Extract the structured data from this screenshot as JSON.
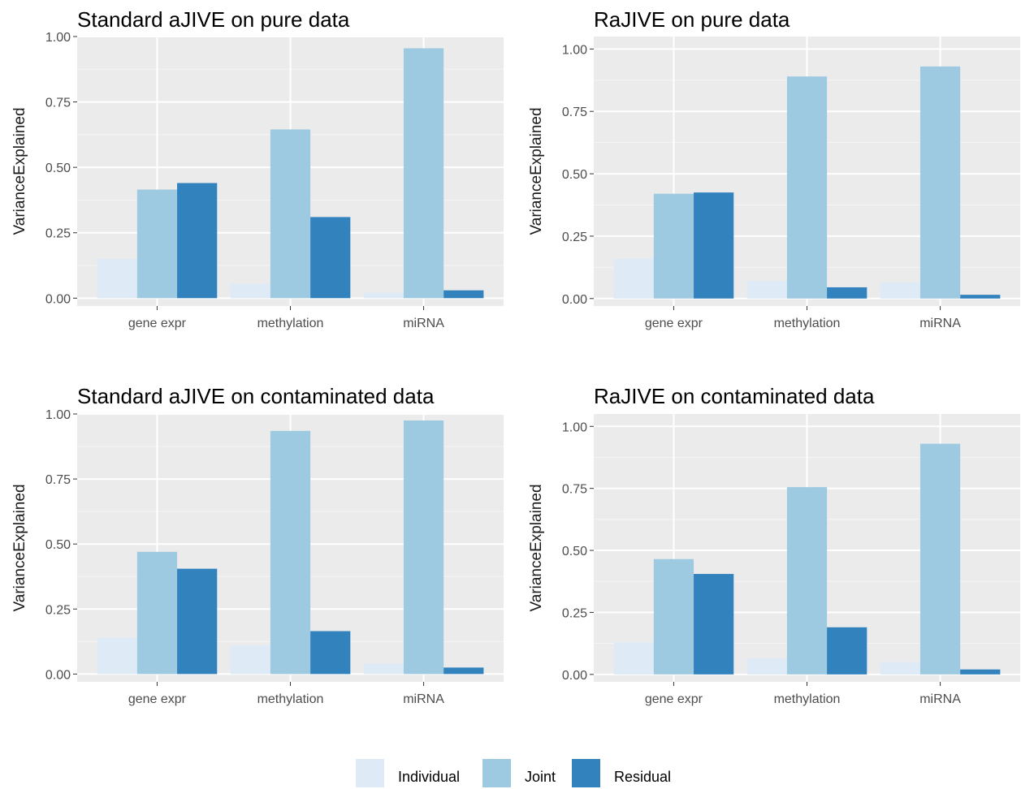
{
  "figure": {
    "legend": {
      "items": [
        {
          "label": "Individual",
          "color": "#deebf7"
        },
        {
          "label": "Joint",
          "color": "#9ecae1"
        },
        {
          "label": "Residual",
          "color": "#3182bd"
        }
      ]
    }
  },
  "chart_data": [
    {
      "type": "bar",
      "title": "Standard aJIVE on pure data",
      "xlabel": "",
      "ylabel": "VarianceExplained",
      "categories": [
        "gene expr",
        "methylation",
        "miRNA"
      ],
      "ylim": [
        -0.03,
        1.0
      ],
      "yticks": [
        "0.00",
        "0.25",
        "0.50",
        "0.75",
        "1.00"
      ],
      "series": [
        {
          "name": "Individual",
          "color": "#deebf7",
          "values": [
            0.15,
            0.055,
            0.02
          ]
        },
        {
          "name": "Joint",
          "color": "#9ecae1",
          "values": [
            0.415,
            0.645,
            0.955
          ]
        },
        {
          "name": "Residual",
          "color": "#3182bd",
          "values": [
            0.44,
            0.31,
            0.03
          ]
        }
      ]
    },
    {
      "type": "bar",
      "title": "RaJIVE on pure data",
      "xlabel": "",
      "ylabel": "VarianceExplained",
      "categories": [
        "gene expr",
        "methylation",
        "miRNA"
      ],
      "ylim": [
        -0.03,
        1.05
      ],
      "yticks": [
        "0.00",
        "0.25",
        "0.50",
        "0.75",
        "1.00"
      ],
      "series": [
        {
          "name": "Individual",
          "color": "#deebf7",
          "values": [
            0.16,
            0.07,
            0.065
          ]
        },
        {
          "name": "Joint",
          "color": "#9ecae1",
          "values": [
            0.42,
            0.89,
            0.93
          ]
        },
        {
          "name": "Residual",
          "color": "#3182bd",
          "values": [
            0.425,
            0.045,
            0.015
          ]
        }
      ]
    },
    {
      "type": "bar",
      "title": "Standard aJIVE on contaminated data",
      "xlabel": "",
      "ylabel": "VarianceExplained",
      "categories": [
        "gene expr",
        "methylation",
        "miRNA"
      ],
      "ylim": [
        -0.03,
        1.0
      ],
      "yticks": [
        "0.00",
        "0.25",
        "0.50",
        "0.75",
        "1.00"
      ],
      "series": [
        {
          "name": "Individual",
          "color": "#deebf7",
          "values": [
            0.14,
            0.11,
            0.04
          ]
        },
        {
          "name": "Joint",
          "color": "#9ecae1",
          "values": [
            0.47,
            0.935,
            0.975
          ]
        },
        {
          "name": "Residual",
          "color": "#3182bd",
          "values": [
            0.405,
            0.165,
            0.025
          ]
        }
      ]
    },
    {
      "type": "bar",
      "title": "RaJIVE on contaminated data",
      "xlabel": "",
      "ylabel": "VarianceExplained",
      "categories": [
        "gene expr",
        "methylation",
        "miRNA"
      ],
      "ylim": [
        -0.03,
        1.05
      ],
      "yticks": [
        "0.00",
        "0.25",
        "0.50",
        "0.75",
        "1.00"
      ],
      "series": [
        {
          "name": "Individual",
          "color": "#deebf7",
          "values": [
            0.13,
            0.065,
            0.05
          ]
        },
        {
          "name": "Joint",
          "color": "#9ecae1",
          "values": [
            0.465,
            0.755,
            0.93
          ]
        },
        {
          "name": "Residual",
          "color": "#3182bd",
          "values": [
            0.405,
            0.19,
            0.02
          ]
        }
      ]
    }
  ]
}
